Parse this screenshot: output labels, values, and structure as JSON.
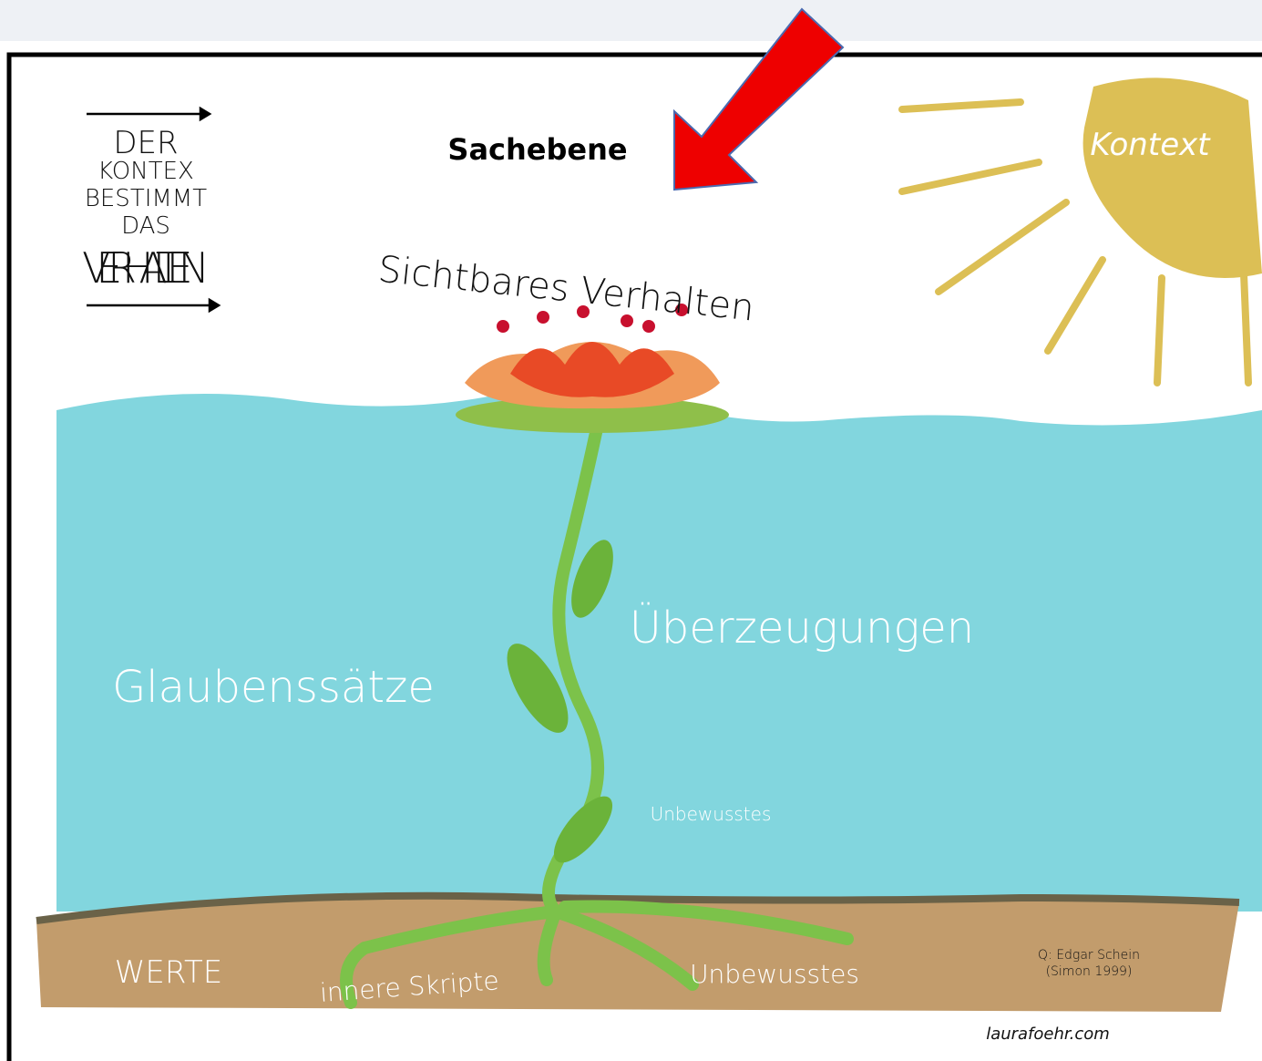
{
  "header": {
    "label": "Sachebene"
  },
  "motto": {
    "lines": [
      "DER",
      "KONTEX",
      "BESTIMMT",
      "DAS",
      "VERHALTEN"
    ]
  },
  "sun": {
    "label": "Kontext"
  },
  "flower": {
    "label": "Sichtbares Verhalten"
  },
  "water": {
    "right": "Überzeugungen",
    "left": "Glaubenssätze",
    "small": "Unbewusstes"
  },
  "ground": {
    "left": "WERTE",
    "middle": "innere Skripte",
    "right": "Unbewusstes",
    "source": [
      "Q: Edgar Schein",
      "(Simon 1999)"
    ],
    "signature": "laurafoehr.com"
  }
}
